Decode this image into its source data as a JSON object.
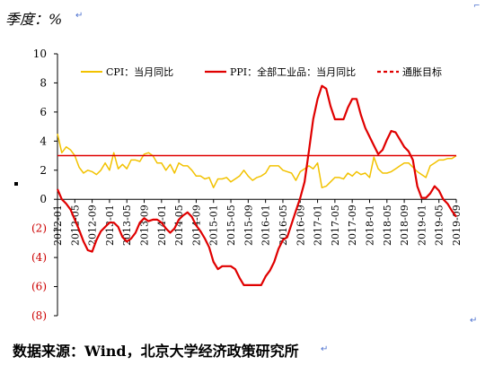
{
  "header": {
    "unit_label": "季度：%"
  },
  "footer": {
    "source": "数据来源：Wind，北京大学经济政策研究所"
  },
  "chart_data": {
    "type": "line",
    "ylim": [
      -8,
      10
    ],
    "y_ticks": [
      "10",
      "8",
      "6",
      "4",
      "2",
      "0",
      "(2)",
      "(4)",
      "(6)",
      "(8)"
    ],
    "y_tick_values": [
      10,
      8,
      6,
      4,
      2,
      0,
      -2,
      -4,
      -6,
      -8
    ],
    "x_tick_labels": [
      "2012-01",
      "2012-05",
      "2012-09",
      "2013-01",
      "2013-05",
      "2013-09",
      "2014-01",
      "2014-05",
      "2014-09",
      "2015-01",
      "2015-05",
      "2015-09",
      "2016-01",
      "2016-05",
      "2016-09",
      "2017-01",
      "2017-05",
      "2017-09",
      "2018-01",
      "2018-05",
      "2018-09",
      "2019-01",
      "2019-05",
      "2019-09"
    ],
    "x": [
      "2012-01",
      "2012-02",
      "2012-03",
      "2012-04",
      "2012-05",
      "2012-06",
      "2012-07",
      "2012-08",
      "2012-09",
      "2012-10",
      "2012-11",
      "2012-12",
      "2013-01",
      "2013-02",
      "2013-03",
      "2013-04",
      "2013-05",
      "2013-06",
      "2013-07",
      "2013-08",
      "2013-09",
      "2013-10",
      "2013-11",
      "2013-12",
      "2014-01",
      "2014-02",
      "2014-03",
      "2014-04",
      "2014-05",
      "2014-06",
      "2014-07",
      "2014-08",
      "2014-09",
      "2014-10",
      "2014-11",
      "2014-12",
      "2015-01",
      "2015-02",
      "2015-03",
      "2015-04",
      "2015-05",
      "2015-06",
      "2015-07",
      "2015-08",
      "2015-09",
      "2015-10",
      "2015-11",
      "2015-12",
      "2016-01",
      "2016-02",
      "2016-03",
      "2016-04",
      "2016-05",
      "2016-06",
      "2016-07",
      "2016-08",
      "2016-09",
      "2016-10",
      "2016-11",
      "2016-12",
      "2017-01",
      "2017-02",
      "2017-03",
      "2017-04",
      "2017-05",
      "2017-06",
      "2017-07",
      "2017-08",
      "2017-09",
      "2017-10",
      "2017-11",
      "2017-12",
      "2018-01",
      "2018-02",
      "2018-03",
      "2018-04",
      "2018-05",
      "2018-06",
      "2018-07",
      "2018-08",
      "2018-09",
      "2018-10",
      "2018-11",
      "2018-12",
      "2019-01",
      "2019-02",
      "2019-03",
      "2019-04",
      "2019-05",
      "2019-06",
      "2019-07",
      "2019-08",
      "2019-09"
    ],
    "series": [
      {
        "name": "CPI：当月同比",
        "color": "#F2C200",
        "style": "solid",
        "values": [
          4.5,
          3.2,
          3.6,
          3.4,
          3.0,
          2.2,
          1.8,
          2.0,
          1.9,
          1.7,
          2.0,
          2.5,
          2.0,
          3.2,
          2.1,
          2.4,
          2.1,
          2.7,
          2.7,
          2.6,
          3.1,
          3.2,
          3.0,
          2.5,
          2.5,
          2.0,
          2.4,
          1.8,
          2.5,
          2.3,
          2.3,
          2.0,
          1.6,
          1.6,
          1.4,
          1.5,
          0.8,
          1.4,
          1.4,
          1.5,
          1.2,
          1.4,
          1.6,
          2.0,
          1.6,
          1.3,
          1.5,
          1.6,
          1.8,
          2.3,
          2.3,
          2.3,
          2.0,
          1.9,
          1.8,
          1.3,
          1.9,
          2.1,
          2.3,
          2.1,
          2.5,
          0.8,
          0.9,
          1.2,
          1.5,
          1.5,
          1.4,
          1.8,
          1.6,
          1.9,
          1.7,
          1.8,
          1.5,
          2.9,
          2.1,
          1.8,
          1.8,
          1.9,
          2.1,
          2.3,
          2.5,
          2.5,
          2.2,
          1.9,
          1.7,
          1.5,
          2.3,
          2.5,
          2.7,
          2.7,
          2.8,
          2.8,
          3.0
        ]
      },
      {
        "name": "PPI：全部工业品：当月同比",
        "color": "#E00000",
        "style": "solid",
        "values": [
          0.7,
          0.0,
          -0.3,
          -0.7,
          -1.4,
          -2.1,
          -2.9,
          -3.5,
          -3.6,
          -2.8,
          -2.2,
          -1.9,
          -1.6,
          -1.6,
          -1.9,
          -2.6,
          -2.9,
          -2.7,
          -2.3,
          -1.6,
          -1.3,
          -1.5,
          -1.4,
          -1.4,
          -1.6,
          -2.0,
          -2.3,
          -2.0,
          -1.4,
          -1.1,
          -0.9,
          -1.2,
          -1.8,
          -2.2,
          -2.7,
          -3.3,
          -4.3,
          -4.8,
          -4.6,
          -4.6,
          -4.6,
          -4.8,
          -5.4,
          -5.9,
          -5.9,
          -5.9,
          -5.9,
          -5.9,
          -5.3,
          -4.9,
          -4.3,
          -3.4,
          -2.8,
          -2.6,
          -1.7,
          -0.8,
          0.1,
          1.2,
          3.3,
          5.5,
          6.9,
          7.8,
          7.6,
          6.4,
          5.5,
          5.5,
          5.5,
          6.3,
          6.9,
          6.9,
          5.8,
          4.9,
          4.3,
          3.7,
          3.1,
          3.4,
          4.1,
          4.7,
          4.6,
          4.1,
          3.6,
          3.3,
          2.7,
          0.9,
          0.1,
          0.1,
          0.4,
          0.9,
          0.6,
          0.0,
          -0.3,
          -0.8,
          -1.2
        ]
      },
      {
        "name": "通胀目标",
        "color": "#E00000",
        "style": "dashed",
        "constant": 3.0
      }
    ],
    "legend_position": "top",
    "grid": false
  }
}
